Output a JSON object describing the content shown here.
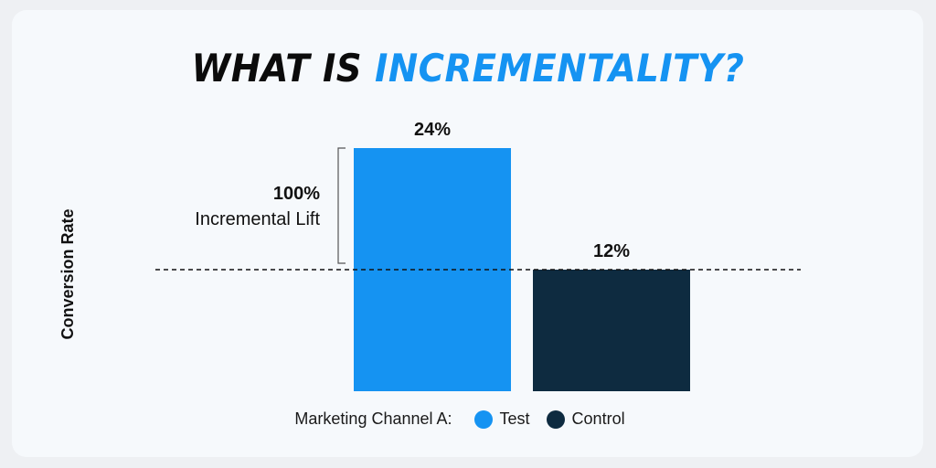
{
  "title": {
    "part1": "WHAT IS ",
    "part2": "INCREMENTALITY?"
  },
  "chart_data": {
    "type": "bar",
    "categories": [
      "Test",
      "Control"
    ],
    "values": [
      24,
      12
    ],
    "value_labels": [
      "24%",
      "12%"
    ],
    "ylabel": "Conversion Rate",
    "ylim": [
      0,
      24
    ],
    "grid": false,
    "legend_placement": "bottom",
    "colors": [
      "#1593f2",
      "#0e2b40"
    ],
    "annotation": {
      "value": "100%",
      "text": "Incremental Lift"
    }
  },
  "legend": {
    "lead": "Marketing Channel A:",
    "items": [
      {
        "label": "Test",
        "color": "#1593f2"
      },
      {
        "label": "Control",
        "color": "#0e2b40"
      }
    ]
  }
}
